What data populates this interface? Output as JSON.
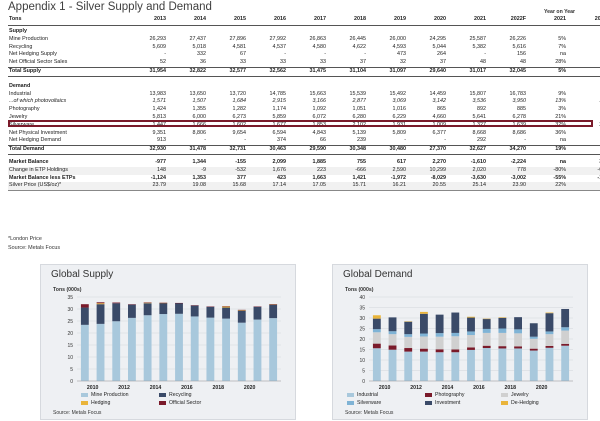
{
  "title": "Appendix 1 - Silver Supply and Demand",
  "yoy_heading": "Year on Year",
  "table": {
    "header": [
      "Tons",
      "2013",
      "2014",
      "2015",
      "2016",
      "2017",
      "2018",
      "2019",
      "2020",
      "2021",
      "2022F",
      "2021",
      "2022F"
    ],
    "rows": [
      {
        "kind": "sec",
        "cells": [
          "Supply",
          "",
          "",
          "",
          "",
          "",
          "",
          "",
          "",
          "",
          "",
          "",
          ""
        ]
      },
      {
        "kind": "row",
        "cells": [
          "Mine Production",
          "26,293",
          "27,437",
          "27,896",
          "27,992",
          "26,863",
          "26,445",
          "26,000",
          "24,295",
          "25,587",
          "26,226",
          "5%",
          "2%"
        ]
      },
      {
        "kind": "row",
        "cells": [
          "Recycling",
          "5,609",
          "5,018",
          "4,581",
          "4,537",
          "4,580",
          "4,622",
          "4,593",
          "5,044",
          "5,382",
          "5,616",
          "7%",
          "4%"
        ]
      },
      {
        "kind": "row",
        "cells": [
          "Net Hedging Supply",
          "-",
          "332",
          "67",
          "-",
          "-",
          "-",
          "473",
          "264",
          "-",
          "156",
          "na",
          "na"
        ]
      },
      {
        "kind": "row",
        "cells": [
          "Net Official Sector Sales",
          "52",
          "36",
          "33",
          "33",
          "33",
          "37",
          "32",
          "37",
          "48",
          "48",
          "28%",
          "1%"
        ]
      },
      {
        "kind": "total",
        "cells": [
          "Total Supply",
          "31,954",
          "32,822",
          "32,577",
          "32,562",
          "31,475",
          "31,104",
          "31,097",
          "29,640",
          "31,017",
          "32,045",
          "5%",
          "3%"
        ]
      },
      {
        "kind": "gap",
        "cells": [
          "",
          "",
          "",
          "",
          "",
          "",
          "",
          "",
          "",
          "",
          "",
          "",
          ""
        ]
      },
      {
        "kind": "sec",
        "cells": [
          "Demand",
          "",
          "",
          "",
          "",
          "",
          "",
          "",
          "",
          "",
          "",
          "",
          ""
        ]
      },
      {
        "kind": "row",
        "cells": [
          "Industrial",
          "13,983",
          "13,650",
          "13,720",
          "14,785",
          "15,663",
          "15,539",
          "15,492",
          "14,459",
          "15,807",
          "16,783",
          "9%",
          "6%"
        ]
      },
      {
        "kind": "hl",
        "cells": [
          "...of which photovoltaics",
          "1,571",
          "1,507",
          "1,684",
          "2,915",
          "3,166",
          "2,877",
          "3,069",
          "3,142",
          "3,536",
          "3,950",
          "13%",
          "12%"
        ]
      },
      {
        "kind": "row",
        "cells": [
          "Photography",
          "1,424",
          "1,355",
          "1,282",
          "1,174",
          "1,092",
          "1,051",
          "1,016",
          "865",
          "892",
          "885",
          "3%",
          "-1%"
        ]
      },
      {
        "kind": "row",
        "cells": [
          "Jewelry",
          "5,813",
          "6,000",
          "6,273",
          "5,859",
          "6,072",
          "6,280",
          "6,229",
          "4,660",
          "5,641",
          "6,278",
          "21%",
          "11%"
        ]
      },
      {
        "kind": "row",
        "cells": [
          "Silverware",
          "1,447",
          "1,666",
          "1,602",
          "1,677",
          "1,853",
          "2,102",
          "1,931",
          "1,009",
          "1,327",
          "1,639",
          "32%",
          "23%"
        ]
      },
      {
        "kind": "row",
        "cells": [
          "Net Physical Investment",
          "9,351",
          "8,806",
          "9,654",
          "6,594",
          "4,843",
          "5,139",
          "5,809",
          "6,377",
          "8,668",
          "8,686",
          "36%",
          "0%"
        ]
      },
      {
        "kind": "row",
        "cells": [
          "Net Hedging Demand",
          "913",
          "-",
          "-",
          "374",
          "66",
          "239",
          "-",
          "-",
          "292",
          "-",
          "na",
          "na"
        ]
      },
      {
        "kind": "total",
        "cells": [
          "Total Demand",
          "32,930",
          "31,478",
          "32,731",
          "30,463",
          "29,590",
          "30,348",
          "30,480",
          "27,370",
          "32,627",
          "34,270",
          "19%",
          "5%"
        ]
      },
      {
        "kind": "gap",
        "cells": [
          "",
          "",
          "",
          "",
          "",
          "",
          "",
          "",
          "",
          "",
          "",
          "",
          ""
        ]
      },
      {
        "kind": "bold",
        "cells": [
          "Market Balance",
          "-977",
          "1,344",
          "-155",
          "2,099",
          "1,885",
          "755",
          "617",
          "2,270",
          "-1,610",
          "-2,224",
          "na",
          "38%"
        ]
      },
      {
        "kind": "row",
        "cells": [
          "Change in ETP Holdings",
          "148",
          "-9",
          "-532",
          "1,676",
          "223",
          "-666",
          "2,590",
          "10,299",
          "2,020",
          "778",
          "-80%",
          "-62%"
        ]
      },
      {
        "kind": "bold",
        "cells": [
          "Market Balance less ETPs",
          "-1,124",
          "1,353",
          "377",
          "423",
          "1,663",
          "1,421",
          "-1,972",
          "-8,029",
          "-3,630",
          "-3,002",
          "-55%",
          "-17%"
        ]
      },
      {
        "kind": "row",
        "cells": [
          "Silver Price (US$/oz)*",
          "23.79",
          "19.08",
          "15.68",
          "17.14",
          "17.05",
          "15.71",
          "16.21",
          "20.55",
          "25.14",
          "23.90",
          "22%",
          "-5%"
        ]
      }
    ]
  },
  "footnote": "*London Price",
  "source": "Source: Metals Focus",
  "chart_data": [
    {
      "type": "bar",
      "stacked": true,
      "title": "Global Supply",
      "ylabel": "Tons (000s)",
      "ylim": [
        0,
        35
      ],
      "yticks": [
        0,
        5,
        10,
        15,
        20,
        25,
        30,
        35
      ],
      "categories": [
        "2010",
        "2011",
        "2012",
        "2013",
        "2014",
        "2015",
        "2016",
        "2017",
        "2018",
        "2019",
        "2020",
        "2021",
        "2022F"
      ],
      "xtick_labels": [
        "2010",
        "2012",
        "2014",
        "2016",
        "2018",
        "2020"
      ],
      "legend_position": "bottom",
      "grid": true,
      "series": [
        {
          "name": "Mine Production",
          "color": "#a8c8dc",
          "values": [
            23.4,
            23.8,
            24.9,
            26.3,
            27.4,
            27.9,
            28.0,
            26.9,
            26.4,
            26.0,
            24.3,
            25.6,
            26.2
          ]
        },
        {
          "name": "Recycling",
          "color": "#3a4a68",
          "values": [
            7.2,
            8.2,
            7.5,
            5.6,
            5.0,
            4.6,
            4.5,
            4.6,
            4.6,
            4.6,
            5.0,
            5.4,
            5.6
          ]
        },
        {
          "name": "Hedging",
          "color": "#e9b43a",
          "values": [
            0.0,
            0.4,
            0.0,
            0.0,
            0.3,
            0.07,
            0.0,
            0.0,
            0.0,
            0.5,
            0.3,
            0.0,
            0.2
          ]
        },
        {
          "name": "Official Sector",
          "color": "#7a1a2a",
          "values": [
            1.4,
            0.4,
            0.3,
            0.05,
            0.04,
            0.03,
            0.03,
            0.03,
            0.04,
            0.03,
            0.04,
            0.05,
            0.05
          ]
        }
      ],
      "source": "Source: Metals Focus"
    },
    {
      "type": "bar",
      "stacked": true,
      "title": "Global Demand",
      "ylabel": "Tons (000s)",
      "ylim": [
        0,
        40
      ],
      "yticks": [
        0,
        5,
        10,
        15,
        20,
        25,
        30,
        35,
        40
      ],
      "categories": [
        "2010",
        "2011",
        "2012",
        "2013",
        "2014",
        "2015",
        "2016",
        "2017",
        "2018",
        "2019",
        "2020",
        "2021",
        "2022F"
      ],
      "xtick_labels": [
        "2010",
        "2012",
        "2014",
        "2016",
        "2018",
        "2020"
      ],
      "legend_position": "bottom",
      "grid": true,
      "series": [
        {
          "name": "Industrial",
          "color": "#a8c8dc",
          "values": [
            15.6,
            14.9,
            14.0,
            14.0,
            13.7,
            13.7,
            14.8,
            15.7,
            15.5,
            15.5,
            14.5,
            15.8,
            16.8
          ]
        },
        {
          "name": "Photography",
          "color": "#7a1a2a",
          "values": [
            2.2,
            2.0,
            1.7,
            1.4,
            1.4,
            1.3,
            1.2,
            1.1,
            1.1,
            1.0,
            0.9,
            0.9,
            0.9
          ]
        },
        {
          "name": "Jewelry",
          "color": "#d0d0d0",
          "values": [
            5.4,
            5.4,
            5.3,
            5.8,
            6.0,
            6.3,
            5.9,
            6.1,
            6.3,
            6.2,
            4.7,
            5.6,
            6.3
          ]
        },
        {
          "name": "Silverware",
          "color": "#7fb3d5",
          "values": [
            1.5,
            1.4,
            1.3,
            1.4,
            1.7,
            1.6,
            1.7,
            1.9,
            2.1,
            1.9,
            1.0,
            1.3,
            1.6
          ]
        },
        {
          "name": "Investment",
          "color": "#3a4a68",
          "values": [
            5.0,
            6.6,
            6.0,
            9.4,
            8.8,
            9.7,
            6.6,
            4.8,
            5.1,
            5.8,
            6.4,
            8.7,
            8.7
          ]
        },
        {
          "name": "De-Hedging",
          "color": "#e9b43a",
          "values": [
            1.6,
            0.0,
            0.1,
            0.9,
            0.0,
            0.0,
            0.4,
            0.07,
            0.24,
            0.0,
            0.0,
            0.3,
            0.0
          ]
        }
      ],
      "source": "Source: Metals Focus"
    }
  ]
}
